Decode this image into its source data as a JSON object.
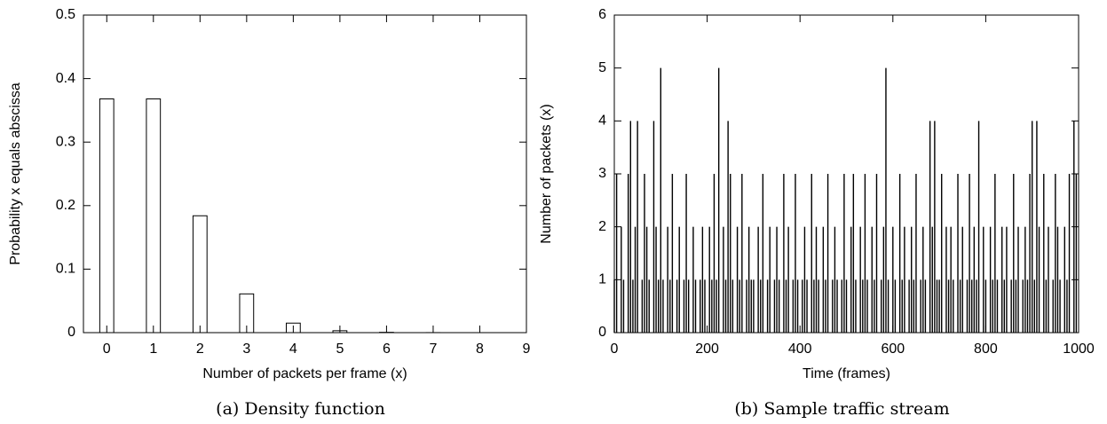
{
  "chart_data": [
    {
      "type": "bar",
      "caption": "(a) Density function",
      "xlabel": "Number of packets per frame (x)",
      "ylabel": "Probability x equals abscissa",
      "x": [
        0,
        1,
        2,
        3,
        4,
        5,
        6,
        7,
        8
      ],
      "values": [
        0.368,
        0.368,
        0.184,
        0.061,
        0.015,
        0.003,
        0.0005,
        7e-05,
        1e-05
      ],
      "xlim": [
        -0.5,
        9
      ],
      "xticks": [
        0,
        1,
        2,
        3,
        4,
        5,
        6,
        7,
        8,
        9
      ],
      "ylim": [
        0,
        0.5
      ],
      "yticks": [
        0,
        0.1,
        0.2,
        0.3,
        0.4,
        0.5
      ],
      "color": "#000000"
    },
    {
      "type": "impulses",
      "caption": "(b) Sample traffic stream",
      "xlabel": "Time (frames)",
      "ylabel": "Number of packets (x)",
      "x": [
        0,
        5,
        10,
        15,
        20,
        25,
        30,
        35,
        40,
        45,
        50,
        55,
        60,
        65,
        70,
        75,
        80,
        85,
        90,
        95,
        100,
        105,
        110,
        115,
        120,
        125,
        130,
        135,
        140,
        145,
        150,
        155,
        160,
        165,
        170,
        175,
        180,
        185,
        190,
        195,
        200,
        205,
        210,
        215,
        220,
        225,
        230,
        235,
        240,
        245,
        250,
        255,
        260,
        265,
        270,
        275,
        280,
        285,
        290,
        295,
        300,
        305,
        310,
        315,
        320,
        325,
        330,
        335,
        340,
        345,
        350,
        355,
        360,
        365,
        370,
        375,
        380,
        385,
        390,
        395,
        400,
        405,
        410,
        415,
        420,
        425,
        430,
        435,
        440,
        445,
        450,
        455,
        460,
        465,
        470,
        475,
        480,
        485,
        490,
        495,
        500,
        505,
        510,
        515,
        520,
        525,
        530,
        535,
        540,
        545,
        550,
        555,
        560,
        565,
        570,
        575,
        580,
        585,
        590,
        595,
        600,
        605,
        610,
        615,
        620,
        625,
        630,
        635,
        640,
        645,
        650,
        655,
        660,
        665,
        670,
        675,
        680,
        685,
        690,
        695,
        700,
        705,
        710,
        715,
        720,
        725,
        730,
        735,
        740,
        745,
        750,
        755,
        760,
        765,
        770,
        775,
        780,
        785,
        790,
        795,
        800,
        805,
        810,
        815,
        820,
        825,
        830,
        835,
        840,
        845,
        850,
        855,
        860,
        865,
        870,
        875,
        880,
        885,
        890,
        895,
        900,
        905,
        910,
        915,
        920,
        925,
        930,
        935,
        940,
        945,
        950,
        955,
        960,
        965,
        970,
        975,
        980,
        985,
        990,
        995
      ],
      "values": [
        1,
        3,
        0,
        2,
        1,
        0,
        3,
        4,
        1,
        2,
        4,
        0,
        1,
        3,
        2,
        1,
        0,
        4,
        2,
        1,
        5,
        1,
        0,
        2,
        1,
        3,
        0,
        1,
        2,
        0,
        1,
        3,
        1,
        0,
        2,
        1,
        0,
        1,
        2,
        1,
        0,
        2,
        1,
        3,
        1,
        5,
        0,
        2,
        1,
        4,
        3,
        1,
        0,
        2,
        1,
        3,
        0,
        1,
        2,
        1,
        1,
        0,
        2,
        1,
        3,
        0,
        1,
        2,
        0,
        1,
        2,
        1,
        0,
        3,
        1,
        2,
        0,
        1,
        3,
        1,
        0,
        1,
        2,
        1,
        0,
        3,
        1,
        2,
        1,
        0,
        2,
        1,
        3,
        0,
        1,
        2,
        1,
        0,
        1,
        3,
        1,
        0,
        2,
        3,
        1,
        0,
        2,
        1,
        3,
        1,
        0,
        2,
        1,
        3,
        0,
        1,
        2,
        5,
        1,
        0,
        2,
        1,
        0,
        3,
        1,
        2,
        0,
        1,
        2,
        1,
        3,
        0,
        1,
        2,
        1,
        0,
        4,
        2,
        4,
        1,
        1,
        3,
        0,
        2,
        1,
        2,
        1,
        0,
        3,
        1,
        2,
        0,
        1,
        3,
        1,
        2,
        1,
        4,
        0,
        2,
        1,
        0,
        2,
        1,
        3,
        1,
        0,
        2,
        1,
        2,
        0,
        1,
        3,
        1,
        2,
        0,
        1,
        2,
        1,
        3,
        4,
        1,
        4,
        2,
        0,
        3,
        1,
        2,
        0,
        1,
        3,
        2,
        1,
        0,
        2,
        1,
        3,
        0,
        4,
        3
      ],
      "xlim": [
        0,
        1000
      ],
      "xticks": [
        0,
        200,
        400,
        600,
        800,
        1000
      ],
      "ylim": [
        0,
        6
      ],
      "yticks": [
        0,
        1,
        2,
        3,
        4,
        5,
        6
      ],
      "color": "#000000"
    }
  ]
}
